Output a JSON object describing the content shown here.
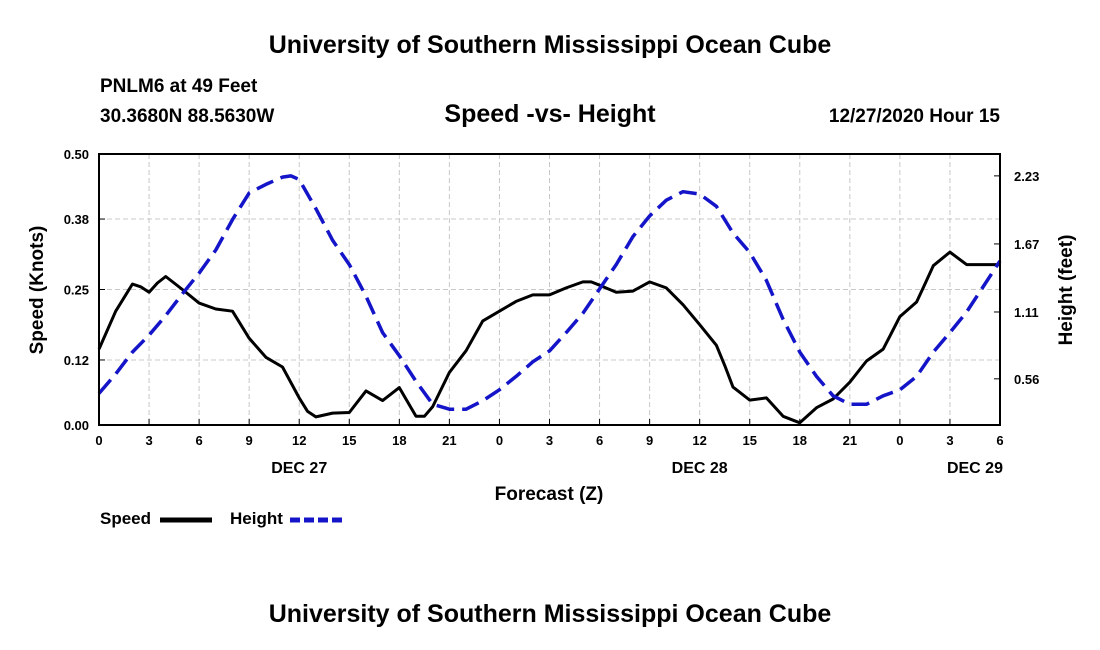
{
  "header": {
    "title": "University of Southern Mississippi Ocean Cube"
  },
  "footer": {
    "title": "University of Southern Mississippi Ocean Cube"
  },
  "station": {
    "name": "PNLM6 at 49 Feet",
    "coords": "30.3680N 88.5630W"
  },
  "issue_time": "12/27/2020 Hour 15",
  "legend": {
    "speed_label": "Speed",
    "height_label": "Height"
  },
  "colors": {
    "speed": "#000000",
    "height": "#1414c8",
    "grid": "#c8c8c8"
  },
  "chart_data": {
    "type": "line",
    "title": "Speed -vs- Height",
    "xlabel": "Forecast (Z)",
    "ylabel_left": "Speed (Knots)",
    "ylabel_right": "Height (feet)",
    "xlim": [
      0,
      54
    ],
    "ylim_left": [
      0,
      0.5
    ],
    "ylim_right": [
      0.18,
      2.41
    ],
    "x_ticks": [
      {
        "x": 0,
        "label": "0"
      },
      {
        "x": 3,
        "label": "3"
      },
      {
        "x": 6,
        "label": "6"
      },
      {
        "x": 9,
        "label": "9"
      },
      {
        "x": 12,
        "label": "12"
      },
      {
        "x": 15,
        "label": "15"
      },
      {
        "x": 18,
        "label": "18"
      },
      {
        "x": 21,
        "label": "21"
      },
      {
        "x": 24,
        "label": "0"
      },
      {
        "x": 27,
        "label": "3"
      },
      {
        "x": 30,
        "label": "6"
      },
      {
        "x": 33,
        "label": "9"
      },
      {
        "x": 36,
        "label": "12"
      },
      {
        "x": 39,
        "label": "15"
      },
      {
        "x": 42,
        "label": "18"
      },
      {
        "x": 45,
        "label": "21"
      },
      {
        "x": 48,
        "label": "0"
      },
      {
        "x": 51,
        "label": "3"
      },
      {
        "x": 54,
        "label": "6"
      }
    ],
    "date_labels": [
      {
        "x": 12,
        "label": "DEC 27"
      },
      {
        "x": 36,
        "label": "DEC 28"
      },
      {
        "x": 52.5,
        "label": "DEC 29"
      }
    ],
    "y_ticks_left": [
      "0.00",
      "0.12",
      "0.25",
      "0.38",
      "0.50"
    ],
    "y_ticks_right": [
      "0.56",
      "1.11",
      "1.67",
      "2.23"
    ],
    "grid": true,
    "series": [
      {
        "name": "Speed",
        "axis": "left",
        "x": [
          0,
          1,
          2,
          2.5,
          3,
          3.5,
          4,
          4.5,
          5,
          6,
          7,
          8,
          9,
          10,
          11,
          12,
          12.5,
          13,
          14,
          15,
          16,
          17,
          18,
          19,
          19.5,
          20,
          21,
          22,
          23,
          24,
          25,
          26,
          27,
          28,
          29,
          29.5,
          30,
          31,
          32,
          33,
          34,
          35,
          36,
          37,
          37.5,
          38,
          39,
          40,
          41,
          42,
          43,
          44,
          45,
          46,
          47,
          48,
          49,
          49.5,
          50,
          51,
          52,
          53,
          54
        ],
        "values": [
          0.14,
          0.21,
          0.26,
          0.255,
          0.245,
          0.262,
          0.274,
          0.262,
          0.25,
          0.225,
          0.214,
          0.21,
          0.16,
          0.125,
          0.107,
          0.05,
          0.025,
          0.015,
          0.022,
          0.023,
          0.063,
          0.045,
          0.069,
          0.016,
          0.016,
          0.034,
          0.097,
          0.137,
          0.192,
          0.21,
          0.228,
          0.24,
          0.24,
          0.253,
          0.264,
          0.264,
          0.258,
          0.245,
          0.247,
          0.264,
          0.253,
          0.222,
          0.185,
          0.147,
          0.11,
          0.07,
          0.046,
          0.05,
          0.016,
          0.004,
          0.032,
          0.048,
          0.079,
          0.118,
          0.14,
          0.2,
          0.227,
          0.26,
          0.294,
          0.319,
          0.296,
          0.296,
          0.296
        ]
      },
      {
        "name": "Height",
        "axis": "right",
        "x": [
          0,
          1,
          2,
          3,
          4,
          5,
          6,
          7,
          8,
          9,
          10,
          11,
          11.5,
          12,
          13,
          14,
          15,
          16,
          17,
          18,
          19,
          20,
          21,
          22,
          23,
          24,
          25,
          26,
          27,
          28,
          29,
          30,
          31,
          32,
          33,
          34,
          35,
          36,
          37,
          38,
          39,
          40,
          41,
          42,
          43,
          44,
          45,
          46,
          47,
          48,
          49,
          50,
          51,
          52,
          53,
          54
        ],
        "values": [
          0.44,
          0.6,
          0.78,
          0.92,
          1.08,
          1.26,
          1.43,
          1.62,
          1.87,
          2.09,
          2.16,
          2.22,
          2.23,
          2.2,
          1.96,
          1.7,
          1.5,
          1.24,
          0.94,
          0.75,
          0.54,
          0.35,
          0.31,
          0.31,
          0.38,
          0.47,
          0.58,
          0.7,
          0.79,
          0.94,
          1.1,
          1.3,
          1.5,
          1.73,
          1.9,
          2.03,
          2.1,
          2.08,
          1.98,
          1.76,
          1.6,
          1.37,
          1.05,
          0.78,
          0.58,
          0.42,
          0.35,
          0.35,
          0.42,
          0.47,
          0.58,
          0.78,
          0.94,
          1.11,
          1.32,
          1.53
        ]
      }
    ]
  }
}
